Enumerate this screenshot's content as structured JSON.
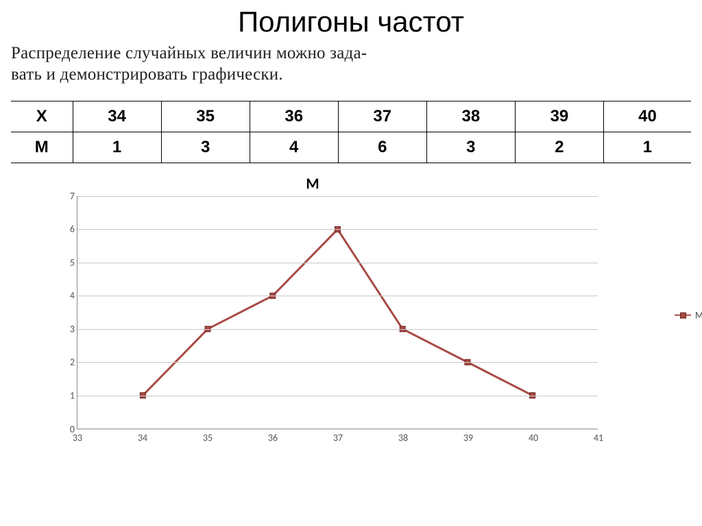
{
  "title": "Полигоны частот",
  "intro_line1": "Распределение случайных величин можно зада-",
  "intro_line2": "вать и демонстрировать графически.",
  "table_head_x": "Х",
  "table_head_m": "М",
  "table_x": [
    "34",
    "35",
    "36",
    "37",
    "38",
    "39",
    "40"
  ],
  "table_m": [
    "1",
    "3",
    "4",
    "6",
    "3",
    "2",
    "1"
  ],
  "chart": {
    "type": "line",
    "title": "М",
    "legend_label": "М",
    "x": [
      34,
      35,
      36,
      37,
      38,
      39,
      40
    ],
    "y": [
      1,
      3,
      4,
      6,
      3,
      2,
      1
    ],
    "xlim": [
      33,
      41
    ],
    "ylim": [
      0,
      7
    ],
    "xticks": [
      33,
      34,
      35,
      36,
      37,
      38,
      39,
      40,
      41
    ],
    "yticks": [
      0,
      1,
      2,
      3,
      4,
      5,
      6,
      7
    ],
    "line_color": "#a84a44",
    "line_width": 3,
    "marker_fill": "#a84a44",
    "marker_border": "#6e201c",
    "marker_size": 8,
    "grid_color": "#c9c9c9",
    "axis_color": "#888888",
    "background_color": "#ffffff",
    "tick_fontsize": 14,
    "title_fontsize": 22
  },
  "colors": {
    "text": "#000000",
    "intro_text": "#222222"
  }
}
